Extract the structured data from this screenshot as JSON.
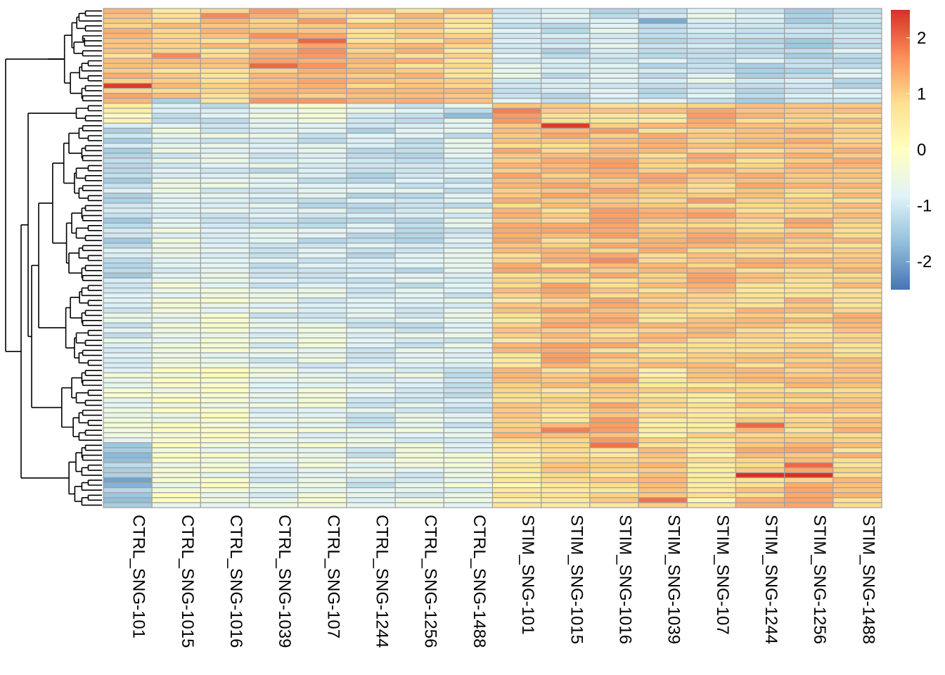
{
  "chart_data": {
    "type": "heatmap",
    "title": "",
    "xlabel": "",
    "ylabel": "",
    "columns": [
      "CTRL_SNG-101",
      "CTRL_SNG-1015",
      "CTRL_SNG-1016",
      "CTRL_SNG-1039",
      "CTRL_SNG-107",
      "CTRL_SNG-1244",
      "CTRL_SNG-1256",
      "CTRL_SNG-1488",
      "STIM_SNG-101",
      "STIM_SNG-1015",
      "STIM_SNG-1016",
      "STIM_SNG-1039",
      "STIM_SNG-107",
      "STIM_SNG-1244",
      "STIM_SNG-1256",
      "STIM_SNG-1488"
    ],
    "row_count": 100,
    "row_blocks": [
      {
        "rows": 19,
        "values": [
          1.1,
          0.9,
          1.0,
          1.3,
          1.3,
          1.0,
          1.0,
          0.9,
          -0.9,
          -1.1,
          -1.0,
          -1.0,
          -0.9,
          -1.1,
          -1.2,
          -1.1
        ]
      },
      {
        "rows": 4,
        "values": [
          0.2,
          -0.9,
          -1.0,
          -0.7,
          -0.5,
          -0.8,
          -0.9,
          -1.0,
          1.4,
          0.9,
          1.0,
          0.9,
          1.3,
          1.1,
          1.0,
          1.0
        ]
      },
      {
        "rows": 32,
        "values": [
          -1.2,
          -0.7,
          -0.8,
          -0.9,
          -1.0,
          -1.1,
          -1.0,
          -0.9,
          1.1,
          1.1,
          1.2,
          1.1,
          1.2,
          1.1,
          1.1,
          1.1
        ]
      },
      {
        "rows": 17,
        "values": [
          -0.9,
          -0.6,
          -0.5,
          -0.8,
          -0.7,
          -0.9,
          -0.9,
          -0.8,
          0.9,
          1.2,
          1.1,
          0.9,
          1.0,
          1.0,
          1.0,
          1.0
        ]
      },
      {
        "rows": 15,
        "values": [
          -0.5,
          -0.3,
          -0.2,
          -0.6,
          -0.6,
          -0.8,
          -0.7,
          -0.9,
          1.0,
          0.9,
          1.2,
          0.7,
          0.8,
          1.0,
          1.0,
          1.0
        ]
      },
      {
        "rows": 13,
        "values": [
          -1.5,
          -0.3,
          -0.4,
          -0.7,
          -0.5,
          -0.9,
          -0.7,
          -0.6,
          0.5,
          0.9,
          0.9,
          1.0,
          0.6,
          1.1,
          1.1,
          1.0
        ]
      }
    ],
    "highlights": [
      {
        "row": 15,
        "col": 0,
        "value": 2.4
      },
      {
        "row": 6,
        "col": 4,
        "value": 2.0
      },
      {
        "row": 1,
        "col": 2,
        "value": 1.7
      },
      {
        "row": 9,
        "col": 1,
        "value": 1.7
      },
      {
        "row": 11,
        "col": 3,
        "value": 2.0
      },
      {
        "row": 2,
        "col": 11,
        "value": -1.9
      },
      {
        "row": 21,
        "col": 7,
        "value": -1.7
      },
      {
        "row": 18,
        "col": 1,
        "value": -1.4
      },
      {
        "row": 23,
        "col": 9,
        "value": 2.4
      },
      {
        "row": 93,
        "col": 13,
        "value": 2.5
      },
      {
        "row": 93,
        "col": 14,
        "value": 2.5
      },
      {
        "row": 91,
        "col": 14,
        "value": 2.0
      },
      {
        "row": 83,
        "col": 13,
        "value": 2.0
      },
      {
        "row": 84,
        "col": 9,
        "value": 1.8
      },
      {
        "row": 87,
        "col": 10,
        "value": 1.9
      },
      {
        "row": 94,
        "col": 0,
        "value": -2.0
      },
      {
        "row": 95,
        "col": 0,
        "value": -1.8
      },
      {
        "row": 20,
        "col": 8,
        "value": 1.8
      },
      {
        "row": 98,
        "col": 11,
        "value": 1.9
      },
      {
        "row": 50,
        "col": 10,
        "value": 1.7
      }
    ],
    "color_scale": {
      "min": -2.5,
      "max": 2.5,
      "colors": [
        "#4575B4",
        "#91BFDB",
        "#E0F3F8",
        "#FFFFBF",
        "#FEE090",
        "#FC8D59",
        "#D73027"
      ]
    },
    "legend": {
      "position": "right",
      "ticks": [
        2,
        1,
        0,
        -1,
        -2
      ],
      "tick_labels": [
        "2",
        "1",
        "0",
        "-1",
        "-2"
      ]
    },
    "dendrogram": "rows",
    "grid": true
  }
}
